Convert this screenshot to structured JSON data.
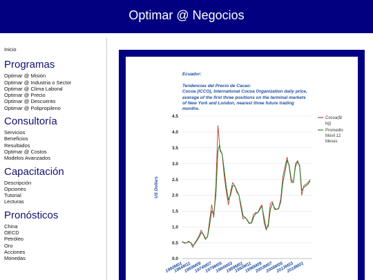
{
  "header": {
    "title": "Optimar @ Negocios"
  },
  "sidebar": {
    "home": "Inicio",
    "sections": [
      {
        "title": "Programas",
        "items": [
          "Optimar @ Misión",
          "Optimar @ Industria o Sector",
          "Optimar @ Clima Laboral",
          "Optimar @ Precio",
          "Optimar @ Descuento",
          "Optimar @ Polipropileno"
        ]
      },
      {
        "title": "Consultoría",
        "items": [
          "Servicios",
          "Beneficios",
          "Resultados",
          "Optimar @ Costos",
          "Modelos Avanzados"
        ]
      },
      {
        "title": "Capacitación",
        "items": [
          "Descripción",
          "Opciones",
          "Tutorial",
          "Lecturas"
        ]
      },
      {
        "title": "Pronósticos",
        "items": [
          "China",
          "OECD",
          "Petróleo",
          "Oro",
          "Acciones",
          "Monedas"
        ]
      }
    ]
  },
  "chart_data": {
    "type": "line",
    "title_lines": [
      "Ecuador:",
      "",
      "Tendencias del Precio de Cacao:",
      "Cocoa (ICCO), International Cocoa Organization daily price,",
      "average of the first three positions on the terminal markets",
      "of New York and London, nearest three future trading",
      "months."
    ],
    "ylabel": "US Dollars",
    "ylim": [
      0,
      4.5
    ],
    "yticks": [
      "0.0",
      "0.5",
      "1.0",
      "1.5",
      "2.0",
      "2.5",
      "3.0",
      "3.5",
      "4.0",
      "4.5"
    ],
    "xticks": [
      "1960M01",
      "1964M11",
      "1969M09",
      "1974M07",
      "1979M05",
      "1984M03",
      "1989M01",
      "1993M11",
      "1998M09",
      "2003M07",
      "2008M05",
      "2013M03",
      "2018M01"
    ],
    "xlim": [
      1960,
      2022
    ],
    "legend": [
      "Cocoa($/kg)",
      "Promedio Móvil 12 Meses"
    ],
    "series": [
      {
        "name": "Cocoa($/kg)",
        "color": "#c0392b",
        "points": [
          [
            1960,
            0.55
          ],
          [
            1961,
            0.48
          ],
          [
            1962,
            0.5
          ],
          [
            1963,
            0.55
          ],
          [
            1964,
            0.5
          ],
          [
            1965,
            0.35
          ],
          [
            1966,
            0.5
          ],
          [
            1967,
            0.6
          ],
          [
            1968,
            0.72
          ],
          [
            1969,
            0.9
          ],
          [
            1970,
            0.75
          ],
          [
            1971,
            0.6
          ],
          [
            1972,
            0.7
          ],
          [
            1973,
            1.2
          ],
          [
            1974,
            1.7
          ],
          [
            1975,
            1.3
          ],
          [
            1976,
            2.3
          ],
          [
            1977,
            4.2
          ],
          [
            1977.5,
            3.8
          ],
          [
            1978,
            3.4
          ],
          [
            1979,
            3.3
          ],
          [
            1980,
            2.6
          ],
          [
            1981,
            2.1
          ],
          [
            1982,
            1.7
          ],
          [
            1983,
            2.1
          ],
          [
            1984,
            2.4
          ],
          [
            1985,
            2.3
          ],
          [
            1986,
            2.1
          ],
          [
            1987,
            2.0
          ],
          [
            1988,
            1.6
          ],
          [
            1989,
            1.25
          ],
          [
            1990,
            1.3
          ],
          [
            1991,
            1.2
          ],
          [
            1992,
            1.1
          ],
          [
            1993,
            1.15
          ],
          [
            1994,
            1.4
          ],
          [
            1995,
            1.45
          ],
          [
            1996,
            1.45
          ],
          [
            1997,
            1.6
          ],
          [
            1998,
            1.7
          ],
          [
            1999,
            1.15
          ],
          [
            2000,
            0.9
          ],
          [
            2001,
            1.1
          ],
          [
            2002,
            1.75
          ],
          [
            2003,
            1.8
          ],
          [
            2004,
            1.55
          ],
          [
            2005,
            1.55
          ],
          [
            2006,
            1.6
          ],
          [
            2007,
            1.9
          ],
          [
            2008,
            2.6
          ],
          [
            2009,
            2.9
          ],
          [
            2010,
            3.2
          ],
          [
            2011,
            2.9
          ],
          [
            2012,
            2.4
          ],
          [
            2013,
            2.4
          ],
          [
            2014,
            3.0
          ],
          [
            2015,
            3.1
          ],
          [
            2016,
            2.9
          ],
          [
            2017,
            2.0
          ],
          [
            2018,
            2.3
          ],
          [
            2019,
            2.35
          ],
          [
            2020,
            2.4
          ],
          [
            2021,
            2.5
          ]
        ]
      },
      {
        "name": "Promedio Móvil 12 Meses",
        "color": "#2e7d32",
        "points": [
          [
            1960,
            0.52
          ],
          [
            1961,
            0.5
          ],
          [
            1962,
            0.5
          ],
          [
            1963,
            0.53
          ],
          [
            1964,
            0.5
          ],
          [
            1965,
            0.42
          ],
          [
            1966,
            0.47
          ],
          [
            1967,
            0.57
          ],
          [
            1968,
            0.68
          ],
          [
            1969,
            0.82
          ],
          [
            1970,
            0.77
          ],
          [
            1971,
            0.64
          ],
          [
            1972,
            0.68
          ],
          [
            1973,
            1.05
          ],
          [
            1974,
            1.5
          ],
          [
            1975,
            1.4
          ],
          [
            1976,
            2.0
          ],
          [
            1977,
            3.4
          ],
          [
            1977.8,
            3.6
          ],
          [
            1978,
            3.45
          ],
          [
            1979,
            3.3
          ],
          [
            1980,
            2.8
          ],
          [
            1981,
            2.25
          ],
          [
            1982,
            1.85
          ],
          [
            1983,
            2.0
          ],
          [
            1984,
            2.3
          ],
          [
            1985,
            2.3
          ],
          [
            1986,
            2.15
          ],
          [
            1987,
            2.0
          ],
          [
            1988,
            1.7
          ],
          [
            1989,
            1.35
          ],
          [
            1990,
            1.3
          ],
          [
            1991,
            1.22
          ],
          [
            1992,
            1.12
          ],
          [
            1993,
            1.12
          ],
          [
            1994,
            1.3
          ],
          [
            1995,
            1.42
          ],
          [
            1996,
            1.45
          ],
          [
            1997,
            1.55
          ],
          [
            1998,
            1.65
          ],
          [
            1999,
            1.3
          ],
          [
            2000,
            0.95
          ],
          [
            2001,
            1.02
          ],
          [
            2002,
            1.55
          ],
          [
            2003,
            1.75
          ],
          [
            2004,
            1.6
          ],
          [
            2005,
            1.55
          ],
          [
            2006,
            1.58
          ],
          [
            2007,
            1.8
          ],
          [
            2008,
            2.4
          ],
          [
            2009,
            2.75
          ],
          [
            2010,
            3.1
          ],
          [
            2011,
            2.95
          ],
          [
            2012,
            2.5
          ],
          [
            2013,
            2.4
          ],
          [
            2014,
            2.9
          ],
          [
            2015,
            3.05
          ],
          [
            2016,
            2.95
          ],
          [
            2017,
            2.15
          ],
          [
            2018,
            2.25
          ],
          [
            2019,
            2.3
          ],
          [
            2020,
            2.35
          ],
          [
            2021,
            2.45
          ]
        ]
      }
    ]
  }
}
